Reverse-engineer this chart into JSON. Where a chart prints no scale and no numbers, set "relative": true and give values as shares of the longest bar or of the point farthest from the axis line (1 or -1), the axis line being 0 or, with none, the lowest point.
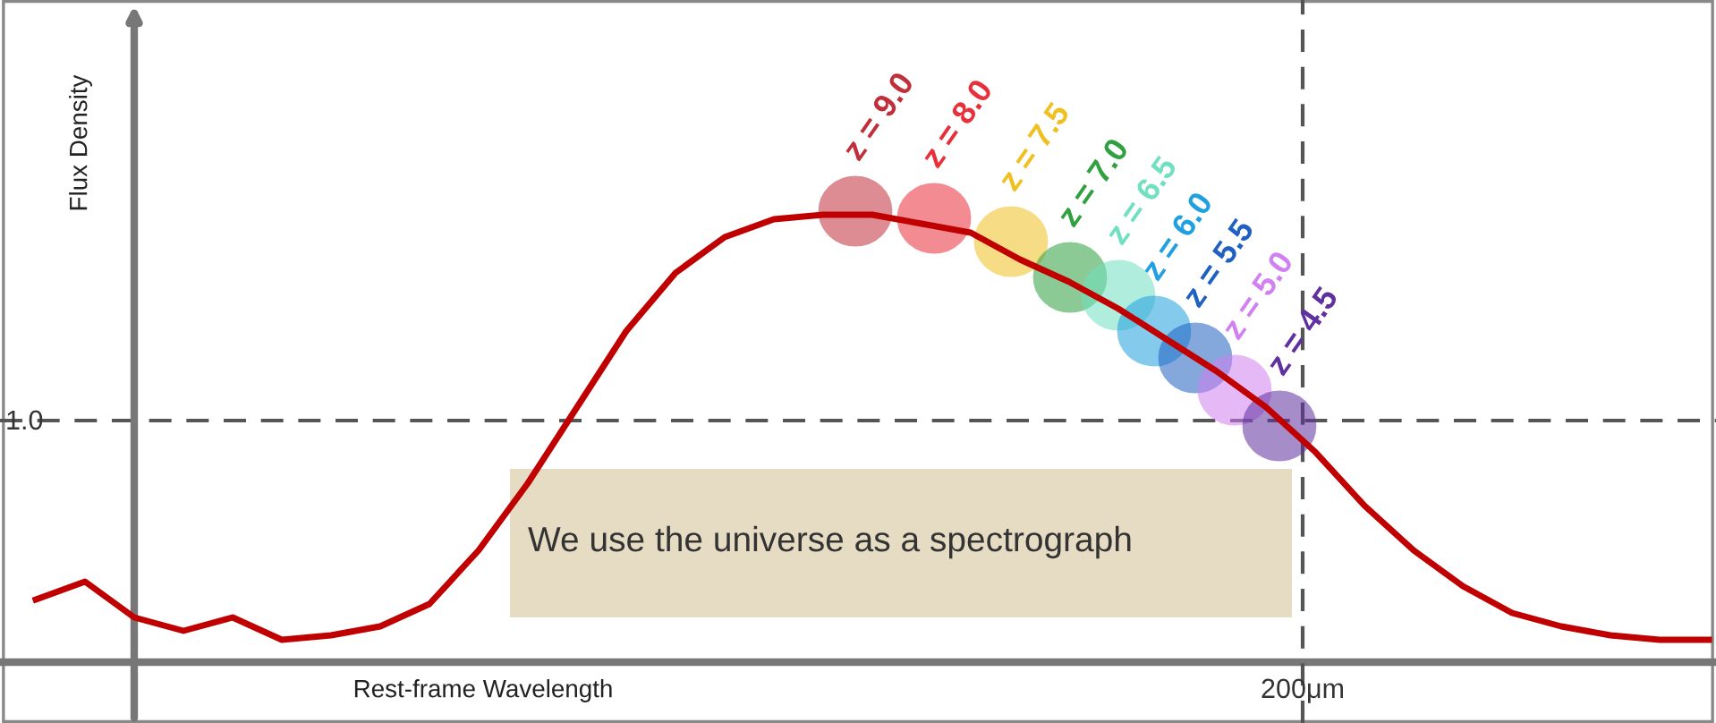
{
  "chart_data": {
    "type": "line",
    "relative": true,
    "xlabel": "Rest-frame Wavelength",
    "ylabel": "Flux Density",
    "categories": [
      null,
      null,
      null,
      null,
      null,
      null,
      null,
      null,
      null,
      null,
      null,
      null,
      null,
      null,
      null,
      null,
      null,
      null,
      null,
      null,
      null,
      null,
      null,
      null,
      null,
      null,
      null,
      null,
      null,
      null,
      null,
      null,
      null,
      null,
      null
    ],
    "series": [
      {
        "color": "#c00000",
        "values": [
          0.14,
          0.18,
          0.1,
          0.07,
          0.1,
          0.05,
          0.06,
          0.08,
          0.13,
          0.25,
          0.4,
          0.57,
          0.74,
          0.87,
          0.95,
          0.99,
          1.0,
          1.0,
          0.98,
          0.96,
          0.9,
          0.85,
          0.79,
          0.72,
          0.65,
          0.57,
          0.47,
          0.35,
          0.25,
          0.17,
          0.11,
          0.08,
          0.06,
          0.05,
          0.05
        ]
      }
    ],
    "annotations": [
      "z = 9.0",
      "z = 8.0",
      "z = 7.5",
      "z = 7.0",
      "z = 6.5",
      "z = 6.0",
      "z = 5.5",
      "z = 5.0",
      "z = 4.5",
      "1.0",
      "200μm",
      "We use the universe as a spectrograph"
    ],
    "ref_lines": [
      {
        "axis": "y",
        "value": 0.54,
        "color": "#555555",
        "line_style": "dashed"
      }
    ],
    "grid": false
  }
}
